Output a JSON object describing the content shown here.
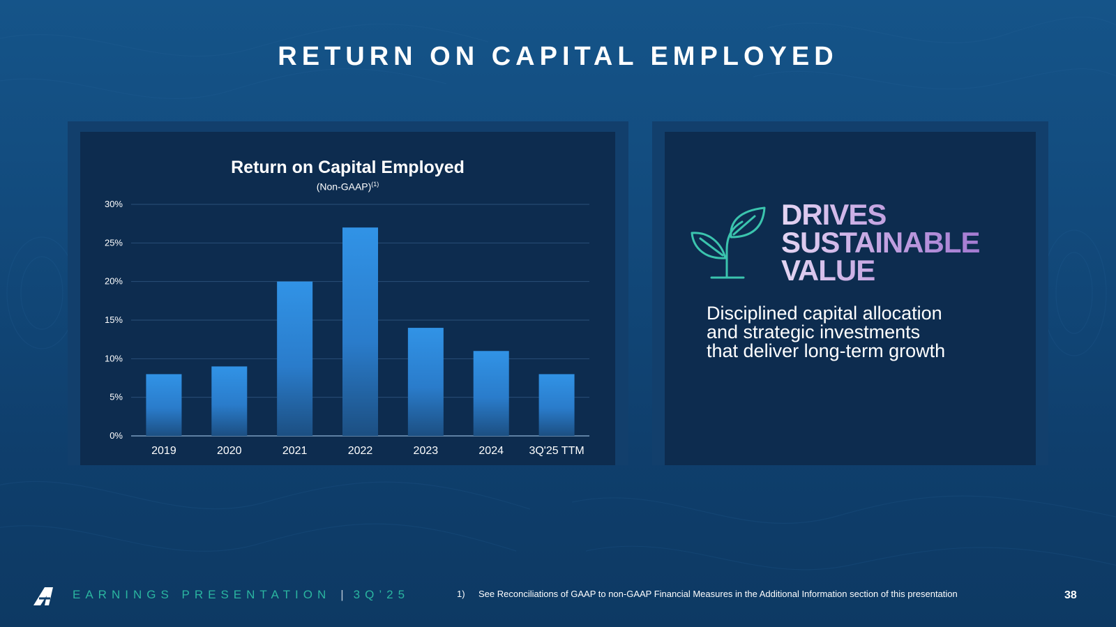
{
  "slide": {
    "title": "RETURN ON CAPITAL EMPLOYED",
    "page_number": "38"
  },
  "chart_data": {
    "type": "bar",
    "title": "Return on Capital Employed",
    "subtitle": "(Non-GAAP)",
    "subtitle_footnote": "(1)",
    "categories": [
      "2019",
      "2020",
      "2021",
      "2022",
      "2023",
      "2024",
      "3Q'25 TTM"
    ],
    "values": [
      8,
      9,
      20,
      27,
      14,
      11,
      8
    ],
    "unit": "%",
    "ylim": [
      0,
      30
    ],
    "yticks": [
      0,
      5,
      10,
      15,
      20,
      25,
      30
    ],
    "ytick_labels": [
      "0%",
      "5%",
      "10%",
      "15%",
      "20%",
      "25%",
      "30%"
    ],
    "grid": true,
    "xlabel": "",
    "ylabel": ""
  },
  "callout": {
    "heading_lines": [
      "DRIVES",
      "SUSTAINABLE",
      "VALUE"
    ],
    "icon": "sprout-icon",
    "tagline_lines": [
      "Disciplined capital allocation",
      "and strategic investments",
      "that deliver long-term growth"
    ]
  },
  "footer": {
    "logo": "company-logo",
    "brand": "EARNINGS PRESENTATION",
    "separator": "|",
    "period": "3Q’25",
    "footnote_number": "1)",
    "footnote_text": "See Reconciliations of GAAP to non-GAAP Financial Measures in the Additional Information section of this presentation"
  },
  "colors": {
    "accent_teal": "#2bb5a0",
    "bar_top": "#3193e6",
    "bar_bottom": "#1c4f82",
    "heading_gradient_start": "#e4d6f3",
    "heading_gradient_end": "#a37ad1"
  }
}
